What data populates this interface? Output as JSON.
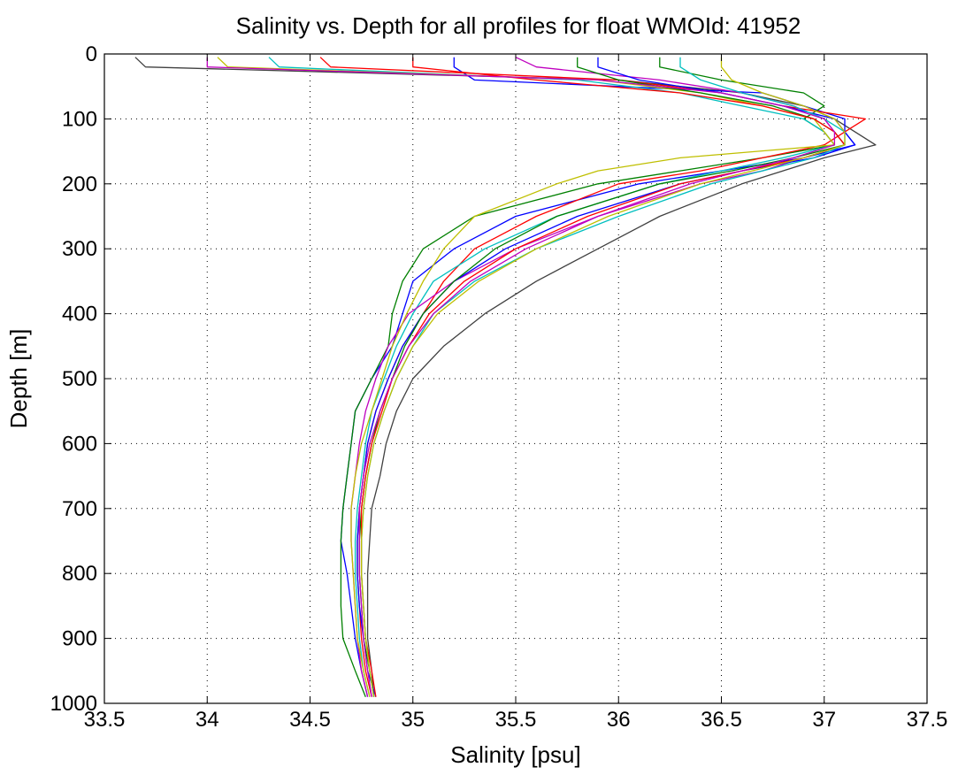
{
  "chart_data": {
    "type": "line",
    "title": "Salinity vs. Depth for all profiles for float WMOId: 41952",
    "xlabel": "Salinity [psu]",
    "ylabel": "Depth [m]",
    "xlim": [
      33.5,
      37.5
    ],
    "ylim": [
      0,
      1000
    ],
    "y_reversed": true,
    "grid": true,
    "legend": "none",
    "x_ticks": [
      "33.5",
      "34",
      "34.5",
      "35",
      "35.5",
      "36",
      "36.5",
      "37",
      "37.5"
    ],
    "y_ticks": [
      "0",
      "100",
      "200",
      "300",
      "400",
      "500",
      "600",
      "700",
      "800",
      "900",
      "1000"
    ],
    "depth_levels": [
      0,
      20,
      40,
      60,
      80,
      100,
      120,
      140,
      160,
      180,
      200,
      250,
      300,
      350,
      400,
      450,
      500,
      550,
      600,
      650,
      700,
      750,
      800,
      850,
      900,
      950,
      990
    ],
    "colors": [
      "#0000ff",
      "#008000",
      "#ff0000",
      "#00bfbf",
      "#bf00bf",
      "#bfbf00",
      "#404040"
    ],
    "series": [
      {
        "color": "#404040",
        "depth": [
          5,
          20,
          40,
          60,
          80,
          100,
          120,
          140,
          160,
          180,
          200,
          250,
          300,
          350,
          400,
          450,
          500,
          550,
          600,
          650,
          700,
          750,
          800,
          850,
          900,
          950,
          990
        ],
        "values": [
          33.65,
          33.7,
          36.0,
          36.6,
          36.9,
          37.05,
          37.15,
          37.25,
          37.0,
          36.8,
          36.6,
          36.2,
          35.9,
          35.6,
          35.35,
          35.15,
          35.0,
          34.92,
          34.87,
          34.84,
          34.8,
          34.79,
          34.78,
          34.78,
          34.78,
          34.8,
          34.81
        ]
      },
      {
        "color": "#0000ff",
        "depth": [
          5,
          20,
          40,
          60,
          80,
          100,
          120,
          140,
          160,
          180,
          200,
          250,
          300,
          350,
          400,
          450,
          500,
          550,
          600,
          650,
          700,
          750,
          800,
          850,
          900,
          950,
          990
        ],
        "values": [
          35.2,
          35.2,
          35.3,
          36.7,
          36.9,
          37.1,
          37.1,
          37.15,
          36.9,
          36.5,
          36.1,
          35.5,
          35.2,
          35.0,
          34.95,
          34.9,
          34.8,
          34.72,
          34.7,
          34.68,
          34.66,
          34.65,
          34.68,
          34.7,
          34.72,
          34.75,
          34.78
        ]
      },
      {
        "color": "#008000",
        "depth": [
          5,
          20,
          40,
          60,
          80,
          100,
          120,
          140,
          160,
          180,
          200,
          250,
          300,
          350,
          400,
          450,
          500,
          550,
          600,
          650,
          700,
          750,
          800,
          850,
          900,
          950,
          990
        ],
        "values": [
          36.2,
          36.2,
          36.5,
          36.9,
          37.0,
          36.9,
          37.0,
          37.05,
          36.7,
          36.3,
          35.9,
          35.3,
          35.05,
          34.95,
          34.9,
          34.88,
          34.8,
          34.72,
          34.7,
          34.68,
          34.66,
          34.65,
          34.65,
          34.65,
          34.66,
          34.72,
          34.77
        ]
      },
      {
        "color": "#ff0000",
        "depth": [
          5,
          20,
          40,
          60,
          80,
          100,
          120,
          140,
          160,
          180,
          200,
          250,
          300,
          350,
          400,
          450,
          500,
          550,
          600,
          650,
          700,
          750,
          800,
          850,
          900,
          950,
          990
        ],
        "values": [
          34.55,
          34.6,
          36.0,
          36.5,
          36.8,
          37.2,
          37.1,
          37.0,
          36.7,
          36.4,
          36.0,
          35.6,
          35.3,
          35.15,
          35.05,
          34.95,
          34.88,
          34.82,
          34.78,
          34.76,
          34.74,
          34.73,
          34.73,
          34.74,
          34.75,
          34.77,
          34.8
        ]
      },
      {
        "color": "#00bfbf",
        "depth": [
          5,
          20,
          40,
          60,
          80,
          100,
          120,
          140,
          160,
          180,
          200,
          250,
          300,
          350,
          400,
          450,
          500,
          550,
          600,
          650,
          700,
          750,
          800,
          850,
          900,
          950,
          990
        ],
        "values": [
          34.3,
          34.35,
          35.8,
          36.3,
          36.6,
          36.9,
          37.0,
          37.05,
          36.8,
          36.5,
          36.2,
          35.7,
          35.35,
          35.1,
          35.0,
          34.92,
          34.86,
          34.8,
          34.77,
          34.75,
          34.73,
          34.72,
          34.72,
          34.73,
          34.74,
          34.76,
          34.79
        ]
      },
      {
        "color": "#bf00bf",
        "depth": [
          5,
          20,
          40,
          60,
          80,
          100,
          120,
          140,
          160,
          180,
          200,
          250,
          300,
          350,
          400,
          450,
          500,
          550,
          600,
          650,
          700,
          750,
          800,
          850,
          900,
          950,
          990
        ],
        "values": [
          35.5,
          35.6,
          36.2,
          36.6,
          36.85,
          37.0,
          37.05,
          37.1,
          36.9,
          36.7,
          36.4,
          35.9,
          35.5,
          35.2,
          34.98,
          34.88,
          34.82,
          34.77,
          34.74,
          34.72,
          34.7,
          34.7,
          34.71,
          34.72,
          34.73,
          34.75,
          34.78
        ]
      },
      {
        "color": "#bfbf00",
        "depth": [
          5,
          20,
          40,
          60,
          80,
          100,
          120,
          140,
          160,
          180,
          200,
          250,
          300,
          350,
          400,
          450,
          500,
          550,
          600,
          650,
          700,
          750,
          800,
          850,
          900,
          950,
          990
        ],
        "values": [
          34.05,
          34.1,
          35.9,
          36.4,
          36.7,
          36.95,
          37.0,
          37.05,
          36.3,
          35.9,
          35.7,
          35.3,
          35.15,
          35.05,
          34.97,
          34.9,
          34.85,
          34.8,
          34.75,
          34.72,
          34.7,
          34.7,
          34.71,
          34.72,
          34.73,
          34.76,
          34.79
        ]
      },
      {
        "color": "#0000ff",
        "depth": [
          5,
          20,
          40,
          60,
          80,
          100,
          120,
          140,
          160,
          180,
          200,
          250,
          300,
          350,
          400,
          450,
          500,
          550,
          600,
          650,
          700,
          750,
          800,
          850,
          900,
          950,
          990
        ],
        "values": [
          35.9,
          35.9,
          36.1,
          36.5,
          36.8,
          37.05,
          37.1,
          37.15,
          36.95,
          36.6,
          36.3,
          35.8,
          35.45,
          35.2,
          35.05,
          34.95,
          34.88,
          34.82,
          34.78,
          34.76,
          34.74,
          34.73,
          34.73,
          34.74,
          34.76,
          34.78,
          34.82
        ]
      },
      {
        "color": "#008000",
        "depth": [
          5,
          20,
          40,
          60,
          80,
          100,
          120,
          140,
          160,
          180,
          200,
          250,
          300,
          350,
          400,
          450,
          500,
          550,
          600,
          650,
          700,
          750,
          800,
          850,
          900,
          950,
          990
        ],
        "values": [
          35.8,
          35.8,
          36.0,
          36.4,
          36.75,
          36.95,
          37.05,
          37.1,
          36.85,
          36.55,
          36.2,
          35.7,
          35.4,
          35.2,
          35.05,
          34.96,
          34.9,
          34.84,
          34.8,
          34.77,
          34.75,
          34.74,
          34.74,
          34.75,
          34.76,
          34.79,
          34.81
        ]
      },
      {
        "color": "#ff0000",
        "depth": [
          5,
          20,
          40,
          60,
          80,
          100,
          120,
          140,
          160,
          180,
          200,
          250,
          300,
          350,
          400,
          450,
          500,
          550,
          600,
          650,
          700,
          750,
          800,
          850,
          900,
          950,
          990
        ],
        "values": [
          35.0,
          35.0,
          35.6,
          36.3,
          36.7,
          36.95,
          37.05,
          37.1,
          36.9,
          36.6,
          36.3,
          35.85,
          35.5,
          35.25,
          35.08,
          34.98,
          34.9,
          34.85,
          34.8,
          34.77,
          34.75,
          34.75,
          34.75,
          34.76,
          34.77,
          34.8,
          34.82
        ]
      },
      {
        "color": "#00bfbf",
        "depth": [
          5,
          20,
          40,
          60,
          80,
          100,
          120,
          140,
          160,
          180,
          200,
          250,
          300,
          350,
          400,
          450,
          500,
          550,
          600,
          650,
          700,
          750,
          800,
          850,
          900,
          950,
          990
        ],
        "values": [
          36.3,
          36.3,
          36.4,
          36.6,
          36.85,
          37.0,
          37.1,
          37.1,
          36.95,
          36.7,
          36.45,
          36.0,
          35.6,
          35.3,
          35.1,
          35.0,
          34.92,
          34.86,
          34.81,
          34.78,
          34.76,
          34.75,
          34.75,
          34.76,
          34.77,
          34.79,
          34.81
        ]
      },
      {
        "color": "#bf00bf",
        "depth": [
          5,
          20,
          40,
          60,
          80,
          100,
          120,
          140,
          160,
          180,
          200,
          250,
          300,
          350,
          400,
          450,
          500,
          550,
          600,
          650,
          700,
          750,
          800,
          850,
          900,
          950,
          990
        ],
        "values": [
          34.0,
          34.0,
          35.9,
          36.5,
          36.8,
          37.0,
          37.05,
          37.05,
          36.85,
          36.6,
          36.35,
          35.9,
          35.55,
          35.28,
          35.1,
          34.98,
          34.9,
          34.84,
          34.79,
          34.76,
          34.74,
          34.74,
          34.74,
          34.75,
          34.76,
          34.78,
          34.8
        ]
      },
      {
        "color": "#bfbf00",
        "depth": [
          5,
          20,
          40,
          60,
          80,
          100,
          120,
          140,
          160,
          180,
          200,
          250,
          300,
          350,
          400,
          450,
          500,
          550,
          600,
          650,
          700,
          750,
          800,
          850,
          900,
          950,
          990
        ],
        "values": [
          36.5,
          36.5,
          36.55,
          36.7,
          36.9,
          37.05,
          37.1,
          37.1,
          36.9,
          36.65,
          36.4,
          35.95,
          35.6,
          35.32,
          35.12,
          35.0,
          34.92,
          34.86,
          34.81,
          34.78,
          34.76,
          34.75,
          34.75,
          34.76,
          34.77,
          34.79,
          34.81
        ]
      }
    ]
  }
}
